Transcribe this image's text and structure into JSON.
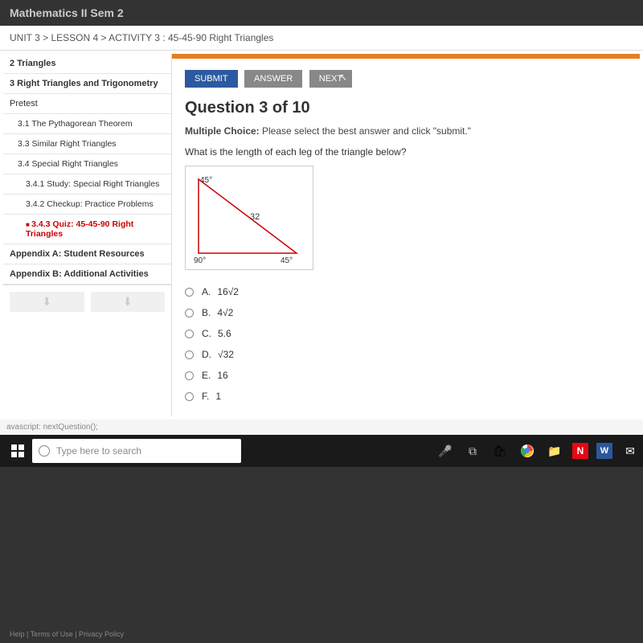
{
  "course_title": "Mathematics II  Sem 2",
  "breadcrumb": "UNIT 3 > LESSON 4 > ACTIVITY 3 : 45-45-90 Right Triangles",
  "sidebar": {
    "items": [
      {
        "label": "2  Triangles",
        "bold": true
      },
      {
        "label": "3  Right Triangles and Trigonometry",
        "bold": true
      },
      {
        "label": "Pretest"
      },
      {
        "label": "3.1  The Pythagorean Theorem",
        "sub": true
      },
      {
        "label": "3.3  Similar Right Triangles",
        "sub": true
      },
      {
        "label": "3.4  Special Right Triangles",
        "sub": true
      },
      {
        "label": "3.4.1 Study: Special Right Triangles",
        "sub2": true
      },
      {
        "label": "3.4.2 Checkup: Practice Problems",
        "sub2": true
      },
      {
        "label": "3.4.3 Quiz: 45-45-90 Right Triangles",
        "sub2": true,
        "active": true
      },
      {
        "label": "Appendix A: Student Resources",
        "bold": true
      },
      {
        "label": "Appendix B: Additional Activities",
        "bold": true
      }
    ]
  },
  "buttons": {
    "submit": "SUBMIT",
    "answer": "ANSWER",
    "next": "NEXT"
  },
  "question": {
    "title": "Question 3 of 10",
    "type_label": "Multiple Choice:",
    "type_text": " Please select the best answer and click \"submit.\"",
    "text": "What is the length of each leg of the triangle below?"
  },
  "triangle": {
    "angle_top": "45°",
    "angle_bottom_left": "90°",
    "angle_bottom_right": "45°",
    "hypotenuse": "32",
    "stroke": "#cc0000"
  },
  "choices": [
    {
      "letter": "A.",
      "text": "16√2"
    },
    {
      "letter": "B.",
      "text": "4√2"
    },
    {
      "letter": "C.",
      "text": "5.6"
    },
    {
      "letter": "D.",
      "text": "√32"
    },
    {
      "letter": "E.",
      "text": "16"
    },
    {
      "letter": "F.",
      "text": "1"
    }
  ],
  "footer": "Help  |  Terms of Use  |  Privacy Policy",
  "status": "avascript: nextQuestion();",
  "search_placeholder": "Type here to search",
  "colors": {
    "accent_orange": "#e67e22",
    "submit_blue": "#2c5aa0",
    "gray_btn": "#888888",
    "active_red": "#cc0000"
  }
}
